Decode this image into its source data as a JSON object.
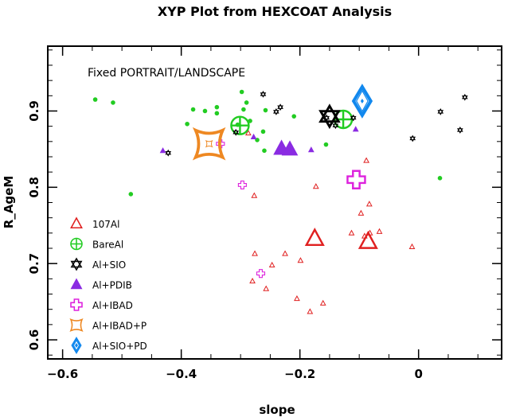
{
  "chart_data": {
    "type": "scatter",
    "title": "XYP Plot from HEXCOAT Analysis",
    "xlabel": "slope",
    "ylabel": "R_AgeM",
    "annotation": "Fixed PORTRAIT/LANDSCAPE",
    "xlim": [
      -0.625,
      0.14
    ],
    "ylim": [
      0.575,
      0.985
    ],
    "xticks": [
      -0.6,
      -0.4,
      -0.2,
      0
    ],
    "xtick_labels": [
      "−0.6",
      "−0.4",
      "−0.2",
      "0"
    ],
    "yticks": [
      0.6,
      0.7,
      0.8,
      0.9
    ],
    "ytick_labels": [
      "0.6",
      "0.7",
      "0.8",
      "0.9"
    ],
    "legend_position": "bottom-left",
    "series": [
      {
        "name": "107Al",
        "marker": "triangle-open",
        "color": "#e02020",
        "points": [
          [
            -0.287,
            0.871
          ],
          [
            -0.277,
            0.789
          ],
          [
            -0.088,
            0.835
          ],
          [
            -0.173,
            0.801
          ],
          [
            -0.083,
            0.778
          ],
          [
            -0.066,
            0.742
          ],
          [
            -0.097,
            0.766
          ],
          [
            -0.113,
            0.74
          ],
          [
            -0.091,
            0.736
          ],
          [
            -0.011,
            0.722
          ],
          [
            -0.082,
            0.74
          ],
          [
            -0.276,
            0.713
          ],
          [
            -0.225,
            0.713
          ],
          [
            -0.199,
            0.704
          ],
          [
            -0.247,
            0.698
          ],
          [
            -0.28,
            0.677
          ],
          [
            -0.257,
            0.667
          ],
          [
            -0.205,
            0.654
          ],
          [
            -0.183,
            0.637
          ],
          [
            -0.161,
            0.648
          ]
        ],
        "emphasized_points": [
          [
            -0.175,
            0.733
          ],
          [
            -0.085,
            0.729
          ]
        ]
      },
      {
        "name": "BareAl",
        "marker": "circle-plus",
        "color": "#22cc22",
        "points": [
          [
            -0.545,
            0.915
          ],
          [
            -0.515,
            0.911
          ],
          [
            -0.485,
            0.791
          ],
          [
            -0.38,
            0.902
          ],
          [
            -0.39,
            0.883
          ],
          [
            -0.36,
            0.9
          ],
          [
            -0.34,
            0.905
          ],
          [
            -0.34,
            0.897
          ],
          [
            -0.298,
            0.925
          ],
          [
            -0.295,
            0.902
          ],
          [
            -0.305,
            0.882
          ],
          [
            -0.29,
            0.911
          ],
          [
            -0.284,
            0.887
          ],
          [
            -0.258,
            0.901
          ],
          [
            -0.262,
            0.873
          ],
          [
            -0.272,
            0.862
          ],
          [
            -0.26,
            0.848
          ],
          [
            -0.21,
            0.893
          ],
          [
            -0.156,
            0.856
          ],
          [
            0.036,
            0.812
          ]
        ],
        "emphasized_points": [
          [
            -0.301,
            0.881
          ],
          [
            -0.127,
            0.889
          ]
        ]
      },
      {
        "name": "Al+SIO",
        "marker": "star-of-david",
        "color": "#000000",
        "points": [
          [
            -0.422,
            0.845
          ],
          [
            -0.308,
            0.872
          ],
          [
            -0.262,
            0.922
          ],
          [
            -0.24,
            0.899
          ],
          [
            -0.233,
            0.905
          ],
          [
            -0.155,
            0.891
          ],
          [
            -0.14,
            0.881
          ],
          [
            -0.11,
            0.891
          ],
          [
            -0.01,
            0.864
          ],
          [
            0.037,
            0.899
          ],
          [
            0.07,
            0.875
          ],
          [
            0.078,
            0.918
          ]
        ],
        "emphasized_points": [
          [
            -0.15,
            0.893
          ]
        ]
      },
      {
        "name": "Al+PDIB",
        "marker": "triangle-filled",
        "color": "#8a2be2",
        "points": [
          [
            -0.431,
            0.848
          ],
          [
            -0.278,
            0.866
          ],
          [
            -0.181,
            0.849
          ],
          [
            -0.106,
            0.876
          ]
        ],
        "emphasized_points": [
          [
            -0.231,
            0.851
          ],
          [
            -0.217,
            0.85
          ]
        ]
      },
      {
        "name": "Al+IBAD",
        "marker": "cross-open",
        "color": "#dd22dd",
        "points": [
          [
            -0.334,
            0.857
          ],
          [
            -0.297,
            0.803
          ],
          [
            -0.266,
            0.687
          ]
        ],
        "emphasized_points": [
          [
            -0.105,
            0.81
          ]
        ]
      },
      {
        "name": "Al+IBAD+P",
        "marker": "astroid",
        "color": "#ee8822",
        "points": [],
        "emphasized_points": [
          [
            -0.353,
            0.857
          ]
        ]
      },
      {
        "name": "Al+SIO+PD",
        "marker": "diamond-open",
        "color": "#1188ee",
        "points": [],
        "emphasized_points": [
          [
            -0.095,
            0.913
          ]
        ]
      }
    ]
  }
}
